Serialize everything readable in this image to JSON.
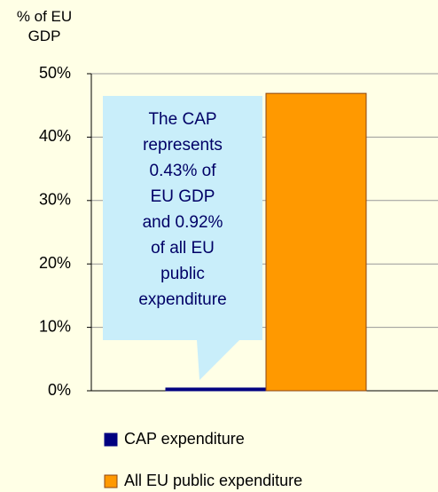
{
  "chart_data": {
    "type": "bar",
    "y_label": "% of EU GDP",
    "annotation": "The CAP represents 0.43% of EU GDP and 0.92% of all EU public expenditure",
    "categories": [
      null
    ],
    "series": [
      {
        "name": "CAP expenditure",
        "color": "#000080",
        "values": [
          0.43
        ]
      },
      {
        "name": "All EU public expenditure",
        "color": "#ff9900",
        "values": [
          46.9
        ]
      }
    ],
    "ylim": [
      0,
      50
    ],
    "yticks": [
      {
        "value": 0,
        "label": "0%"
      },
      {
        "value": 10,
        "label": "10%"
      },
      {
        "value": 20,
        "label": "20%"
      },
      {
        "value": 30,
        "label": "30%"
      },
      {
        "value": 40,
        "label": "40%"
      },
      {
        "value": 50,
        "label": "50%"
      }
    ],
    "grid": true,
    "legend": "bottom"
  }
}
